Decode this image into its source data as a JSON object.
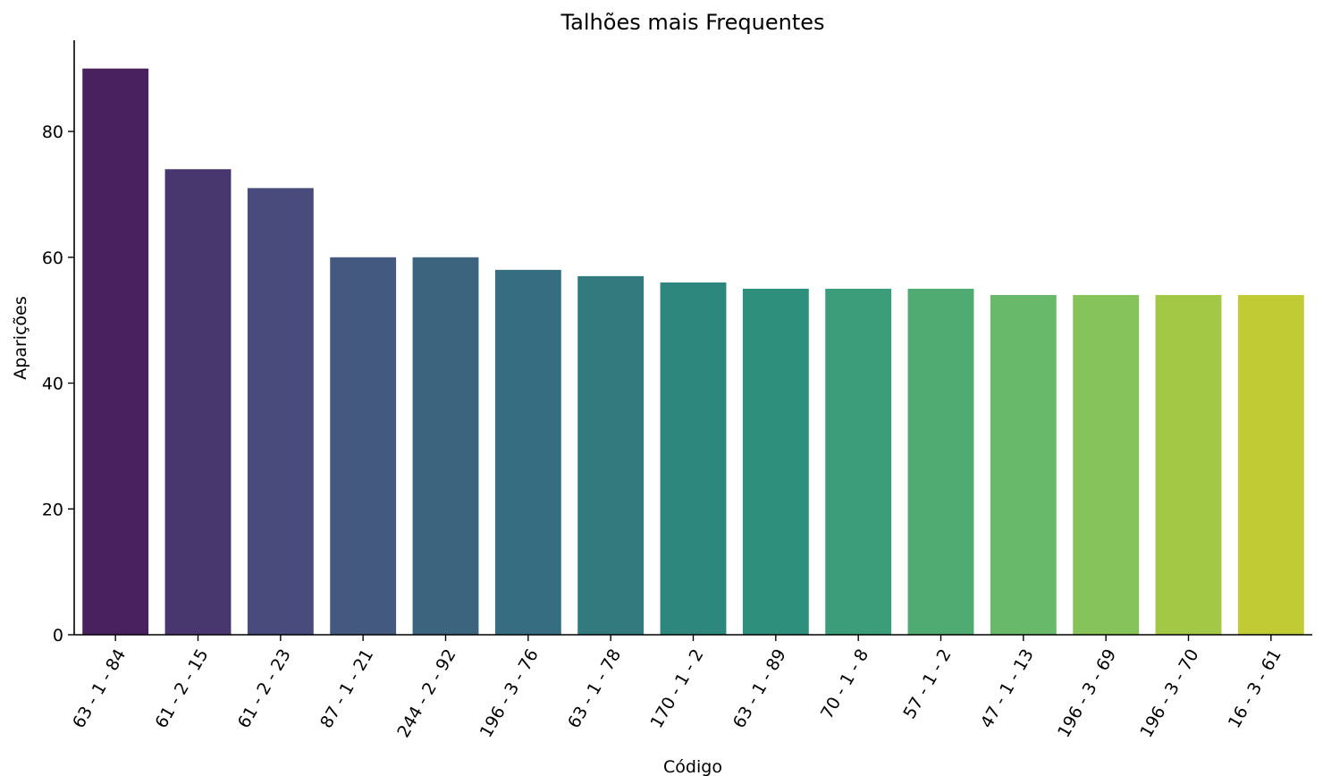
{
  "chart_data": {
    "type": "bar",
    "title": "Talhões mais Frequentes",
    "xlabel": "Código",
    "ylabel": "Aparições",
    "categories": [
      "63 - 1 - 84",
      "61 - 2 - 15",
      "61 - 2 - 23",
      "87 - 1 - 21",
      "244 - 2 - 92",
      "196 - 3 - 76",
      "63 - 1 - 78",
      "170 - 1 - 2",
      "63 - 1 - 89",
      "70 - 1 - 8",
      "57 - 1 - 2",
      "47 - 1 - 13",
      "196 - 3 - 69",
      "196 - 3 - 70",
      "16 - 3 - 61"
    ],
    "values": [
      90,
      74,
      71,
      60,
      60,
      58,
      57,
      56,
      55,
      55,
      55,
      54,
      54,
      54,
      54
    ],
    "colors": [
      "#48215e",
      "#48376f",
      "#484b7c",
      "#44597f",
      "#3d647f",
      "#376d80",
      "#327a7e",
      "#2e877c",
      "#2d8f7c",
      "#3b9d7a",
      "#4fab71",
      "#69b96a",
      "#87c35b",
      "#a2c846",
      "#c1cb34"
    ],
    "yticks": [
      0,
      20,
      40,
      60,
      80
    ],
    "ylim": [
      0,
      94.5
    ],
    "grid": false
  }
}
